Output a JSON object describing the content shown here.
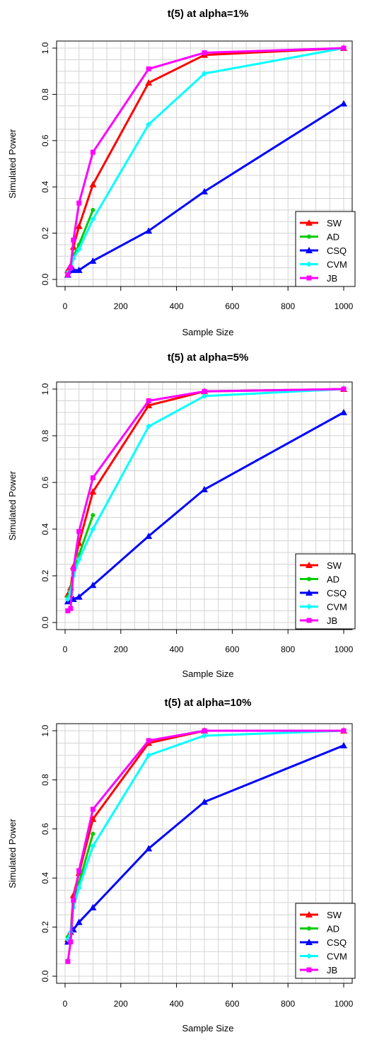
{
  "chart_data": [
    {
      "type": "line",
      "title": "t(5) at alpha=1%",
      "xlabel": "Sample Size",
      "ylabel": "Simulated Power",
      "xlim": [
        0,
        1000
      ],
      "ylim": [
        0,
        1
      ],
      "xticks": [
        "0",
        "200",
        "400",
        "600",
        "800",
        "1000"
      ],
      "yticks": [
        "0.0",
        "0.2",
        "0.4",
        "0.6",
        "0.8",
        "1.0"
      ],
      "grid": true,
      "legend_position": "bottom-right",
      "series": [
        {
          "name": "SW",
          "color": "#ff0000",
          "marker": "triangle",
          "x": [
            10,
            20,
            30,
            50,
            100,
            300,
            500,
            1000
          ],
          "values": [
            0.04,
            0.06,
            0.14,
            0.23,
            0.41,
            0.85,
            0.97,
            1.0
          ]
        },
        {
          "name": "AD",
          "color": "#00cc00",
          "marker": "circle",
          "x": [
            10,
            20,
            30,
            50,
            100
          ],
          "values": [
            0.03,
            0.05,
            0.1,
            0.15,
            0.3
          ]
        },
        {
          "name": "CSQ",
          "color": "#0000ff",
          "marker": "triangle",
          "x": [
            10,
            30,
            50,
            100,
            300,
            500,
            1000
          ],
          "values": [
            0.02,
            0.04,
            0.04,
            0.08,
            0.21,
            0.38,
            0.76
          ]
        },
        {
          "name": "CVM",
          "color": "#00ffff",
          "marker": "diamond",
          "x": [
            10,
            20,
            30,
            50,
            100,
            300,
            500,
            1000
          ],
          "values": [
            0.03,
            0.05,
            0.09,
            0.13,
            0.26,
            0.67,
            0.89,
            1.0
          ]
        },
        {
          "name": "JB",
          "color": "#ff00ff",
          "marker": "square",
          "x": [
            10,
            20,
            30,
            50,
            100,
            300,
            500,
            1000
          ],
          "values": [
            0.02,
            0.05,
            0.17,
            0.33,
            0.55,
            0.91,
            0.98,
            1.0
          ]
        }
      ]
    },
    {
      "type": "line",
      "title": "t(5) at alpha=5%",
      "xlabel": "Sample Size",
      "ylabel": "Simulated Power",
      "xlim": [
        0,
        1000
      ],
      "ylim": [
        0,
        1
      ],
      "xticks": [
        "0",
        "200",
        "400",
        "600",
        "800",
        "1000"
      ],
      "yticks": [
        "0.0",
        "0.2",
        "0.4",
        "0.6",
        "0.8",
        "1.0"
      ],
      "grid": true,
      "legend_position": "bottom-right",
      "series": [
        {
          "name": "SW",
          "color": "#ff0000",
          "marker": "triangle",
          "x": [
            10,
            20,
            30,
            50,
            100,
            300,
            500,
            1000
          ],
          "values": [
            0.12,
            0.15,
            0.24,
            0.34,
            0.56,
            0.93,
            0.99,
            1.0
          ]
        },
        {
          "name": "AD",
          "color": "#00cc00",
          "marker": "circle",
          "x": [
            10,
            20,
            30,
            50,
            100
          ],
          "values": [
            0.11,
            0.14,
            0.21,
            0.29,
            0.46
          ]
        },
        {
          "name": "CSQ",
          "color": "#0000ff",
          "marker": "triangle",
          "x": [
            10,
            30,
            50,
            100,
            300,
            500,
            1000
          ],
          "values": [
            0.09,
            0.1,
            0.11,
            0.16,
            0.37,
            0.57,
            0.9
          ]
        },
        {
          "name": "CVM",
          "color": "#00ffff",
          "marker": "diamond",
          "x": [
            10,
            20,
            30,
            50,
            100,
            300,
            500,
            1000
          ],
          "values": [
            0.1,
            0.13,
            0.2,
            0.27,
            0.4,
            0.84,
            0.97,
            1.0
          ]
        },
        {
          "name": "JB",
          "color": "#ff00ff",
          "marker": "square",
          "x": [
            10,
            20,
            30,
            50,
            100,
            300,
            500,
            1000
          ],
          "values": [
            0.05,
            0.06,
            0.23,
            0.39,
            0.62,
            0.95,
            0.99,
            1.0
          ]
        }
      ]
    },
    {
      "type": "line",
      "title": "t(5) at alpha=10%",
      "xlabel": "Sample Size",
      "ylabel": "Simulated Power",
      "xlim": [
        0,
        1000
      ],
      "ylim": [
        0,
        1
      ],
      "xticks": [
        "0",
        "200",
        "400",
        "600",
        "800",
        "1000"
      ],
      "yticks": [
        "0.0",
        "0.2",
        "0.4",
        "0.6",
        "0.8",
        "1.0"
      ],
      "grid": true,
      "legend_position": "bottom-right",
      "series": [
        {
          "name": "SW",
          "color": "#ff0000",
          "marker": "triangle",
          "x": [
            10,
            20,
            30,
            50,
            100,
            300,
            500,
            1000
          ],
          "values": [
            0.15,
            0.18,
            0.33,
            0.42,
            0.64,
            0.95,
            1.0,
            1.0
          ]
        },
        {
          "name": "AD",
          "color": "#00cc00",
          "marker": "circle",
          "x": [
            10,
            20,
            30,
            50,
            100
          ],
          "values": [
            0.16,
            0.18,
            0.3,
            0.38,
            0.58
          ]
        },
        {
          "name": "CSQ",
          "color": "#0000ff",
          "marker": "triangle",
          "x": [
            10,
            30,
            50,
            100,
            300,
            500,
            1000
          ],
          "values": [
            0.14,
            0.19,
            0.22,
            0.28,
            0.52,
            0.71,
            0.94
          ]
        },
        {
          "name": "CVM",
          "color": "#00ffff",
          "marker": "diamond",
          "x": [
            10,
            20,
            30,
            50,
            100,
            300,
            500,
            1000
          ],
          "values": [
            0.15,
            0.18,
            0.28,
            0.36,
            0.53,
            0.9,
            0.98,
            1.0
          ]
        },
        {
          "name": "JB",
          "color": "#ff00ff",
          "marker": "square",
          "x": [
            10,
            20,
            30,
            50,
            100,
            300,
            500,
            1000
          ],
          "values": [
            0.06,
            0.14,
            0.31,
            0.43,
            0.68,
            0.96,
            1.0,
            1.0
          ]
        }
      ]
    }
  ]
}
